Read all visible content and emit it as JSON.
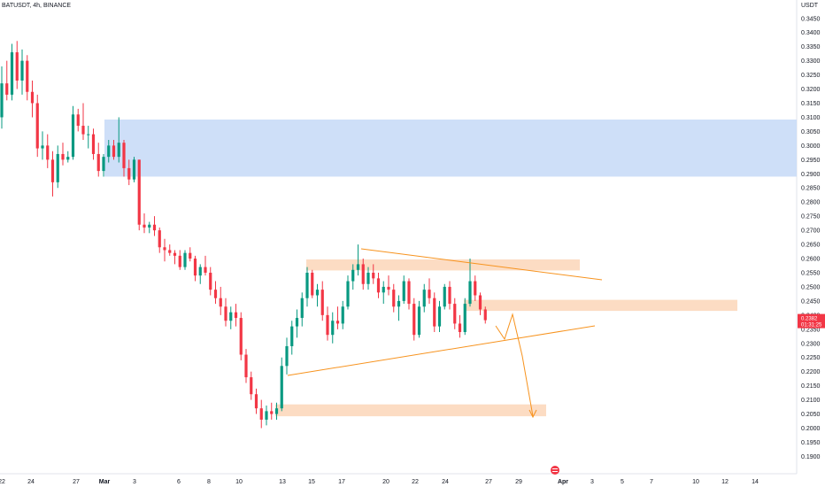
{
  "header": {
    "symbol": "BATUSDT, 4h, BINANCE",
    "currency": "USDT"
  },
  "chart_data": {
    "type": "candlestick",
    "symbol": "BATUSDT",
    "timeframe": "4h",
    "exchange": "BINANCE",
    "y_ticks": [
      "0.3450",
      "0.3400",
      "0.3350",
      "0.3300",
      "0.3250",
      "0.3200",
      "0.3150",
      "0.3100",
      "0.3050",
      "0.3000",
      "0.2950",
      "0.2900",
      "0.2850",
      "0.2800",
      "0.2750",
      "0.2700",
      "0.2650",
      "0.2600",
      "0.2550",
      "0.2500",
      "0.2450",
      "0.2400",
      "0.2350",
      "0.2300",
      "0.2250",
      "0.2200",
      "0.2150",
      "0.2100",
      "0.2050",
      "0.2000",
      "0.1950",
      "0.1900"
    ],
    "ylim": [
      0.187,
      0.349
    ],
    "x_ticks": [
      {
        "label": "22",
        "bold": false
      },
      {
        "label": "24",
        "bold": false
      },
      {
        "label": "27",
        "bold": false
      },
      {
        "label": "Mar",
        "bold": true
      },
      {
        "label": "3",
        "bold": false
      },
      {
        "label": "6",
        "bold": false
      },
      {
        "label": "8",
        "bold": false
      },
      {
        "label": "10",
        "bold": false
      },
      {
        "label": "13",
        "bold": false
      },
      {
        "label": "15",
        "bold": false
      },
      {
        "label": "17",
        "bold": false
      },
      {
        "label": "20",
        "bold": false
      },
      {
        "label": "22",
        "bold": false
      },
      {
        "label": "24",
        "bold": false
      },
      {
        "label": "27",
        "bold": false
      },
      {
        "label": "29",
        "bold": false
      },
      {
        "label": "Apr",
        "bold": true
      },
      {
        "label": "3",
        "bold": false
      },
      {
        "label": "5",
        "bold": false
      },
      {
        "label": "7",
        "bold": false
      },
      {
        "label": "10",
        "bold": false
      },
      {
        "label": "12",
        "bold": false
      },
      {
        "label": "14",
        "bold": false
      }
    ],
    "current_price": {
      "value": "0.2382",
      "countdown": "01:31:25",
      "color": "#f23645"
    },
    "colors": {
      "up": "#089981",
      "down": "#f23645",
      "supply_zone": "#c9dcf7",
      "sr_zone": "#fcd8bc",
      "trendline": "#f7931e"
    },
    "zones": [
      {
        "type": "supply",
        "y_top": 0.3092,
        "y_bottom": 0.289
      },
      {
        "type": "resistance",
        "y_top": 0.2597,
        "y_bottom": 0.2558
      },
      {
        "type": "resistance",
        "y_top": 0.2454,
        "y_bottom": 0.2415
      },
      {
        "type": "support",
        "y_top": 0.2084,
        "y_bottom": 0.2042
      }
    ],
    "candles": [
      [
        0.31,
        0.328,
        0.306,
        0.322
      ],
      [
        0.322,
        0.33,
        0.316,
        0.318
      ],
      [
        0.318,
        0.336,
        0.316,
        0.333
      ],
      [
        0.333,
        0.337,
        0.32,
        0.323
      ],
      [
        0.323,
        0.334,
        0.318,
        0.33
      ],
      [
        0.33,
        0.332,
        0.316,
        0.319
      ],
      [
        0.319,
        0.323,
        0.31,
        0.315
      ],
      [
        0.315,
        0.318,
        0.296,
        0.299
      ],
      [
        0.299,
        0.305,
        0.295,
        0.3
      ],
      [
        0.3,
        0.304,
        0.292,
        0.295
      ],
      [
        0.295,
        0.298,
        0.282,
        0.287
      ],
      [
        0.287,
        0.3,
        0.285,
        0.297
      ],
      [
        0.297,
        0.301,
        0.293,
        0.295
      ],
      [
        0.295,
        0.298,
        0.294,
        0.296
      ],
      [
        0.296,
        0.314,
        0.295,
        0.311
      ],
      [
        0.311,
        0.313,
        0.305,
        0.307
      ],
      [
        0.307,
        0.315,
        0.302,
        0.304
      ],
      [
        0.304,
        0.307,
        0.299,
        0.304
      ],
      [
        0.304,
        0.306,
        0.295,
        0.297
      ],
      [
        0.297,
        0.301,
        0.289,
        0.291
      ],
      [
        0.291,
        0.297,
        0.289,
        0.296
      ],
      [
        0.296,
        0.302,
        0.294,
        0.3
      ],
      [
        0.3,
        0.302,
        0.295,
        0.296
      ],
      [
        0.296,
        0.31,
        0.294,
        0.301
      ],
      [
        0.301,
        0.302,
        0.289,
        0.292
      ],
      [
        0.292,
        0.295,
        0.286,
        0.288
      ],
      [
        0.288,
        0.296,
        0.287,
        0.295
      ],
      [
        0.295,
        0.295,
        0.27,
        0.272
      ],
      [
        0.272,
        0.276,
        0.269,
        0.271
      ],
      [
        0.271,
        0.273,
        0.269,
        0.272
      ],
      [
        0.272,
        0.275,
        0.268,
        0.27
      ],
      [
        0.27,
        0.271,
        0.262,
        0.264
      ],
      [
        0.264,
        0.267,
        0.259,
        0.263
      ],
      [
        0.263,
        0.265,
        0.261,
        0.262
      ],
      [
        0.262,
        0.263,
        0.258,
        0.261
      ],
      [
        0.261,
        0.263,
        0.256,
        0.257
      ],
      [
        0.257,
        0.263,
        0.256,
        0.262
      ],
      [
        0.262,
        0.264,
        0.259,
        0.26
      ],
      [
        0.26,
        0.261,
        0.252,
        0.254
      ],
      [
        0.254,
        0.258,
        0.251,
        0.257
      ],
      [
        0.257,
        0.261,
        0.254,
        0.255
      ],
      [
        0.255,
        0.257,
        0.247,
        0.249
      ],
      [
        0.249,
        0.252,
        0.244,
        0.246
      ],
      [
        0.246,
        0.25,
        0.24,
        0.243
      ],
      [
        0.243,
        0.246,
        0.236,
        0.238
      ],
      [
        0.238,
        0.243,
        0.235,
        0.241
      ],
      [
        0.241,
        0.244,
        0.236,
        0.239
      ],
      [
        0.239,
        0.241,
        0.224,
        0.226
      ],
      [
        0.226,
        0.228,
        0.216,
        0.218
      ],
      [
        0.218,
        0.22,
        0.21,
        0.212
      ],
      [
        0.212,
        0.214,
        0.205,
        0.207
      ],
      [
        0.207,
        0.21,
        0.2,
        0.203
      ],
      [
        0.203,
        0.208,
        0.201,
        0.206
      ],
      [
        0.206,
        0.209,
        0.203,
        0.205
      ],
      [
        0.205,
        0.209,
        0.203,
        0.207
      ],
      [
        0.207,
        0.225,
        0.206,
        0.222
      ],
      [
        0.222,
        0.232,
        0.219,
        0.229
      ],
      [
        0.229,
        0.238,
        0.226,
        0.236
      ],
      [
        0.236,
        0.242,
        0.232,
        0.239
      ],
      [
        0.239,
        0.248,
        0.236,
        0.246
      ],
      [
        0.246,
        0.257,
        0.243,
        0.255
      ],
      [
        0.255,
        0.256,
        0.246,
        0.247
      ],
      [
        0.247,
        0.251,
        0.243,
        0.249
      ],
      [
        0.249,
        0.252,
        0.238,
        0.24
      ],
      [
        0.24,
        0.243,
        0.231,
        0.233
      ],
      [
        0.233,
        0.241,
        0.23,
        0.238
      ],
      [
        0.238,
        0.243,
        0.235,
        0.237
      ],
      [
        0.237,
        0.245,
        0.235,
        0.243
      ],
      [
        0.243,
        0.254,
        0.242,
        0.252
      ],
      [
        0.252,
        0.258,
        0.249,
        0.256
      ],
      [
        0.256,
        0.265,
        0.254,
        0.258
      ],
      [
        0.258,
        0.26,
        0.249,
        0.251
      ],
      [
        0.251,
        0.257,
        0.249,
        0.255
      ],
      [
        0.255,
        0.258,
        0.251,
        0.253
      ],
      [
        0.253,
        0.255,
        0.246,
        0.248
      ],
      [
        0.248,
        0.252,
        0.244,
        0.25
      ],
      [
        0.25,
        0.254,
        0.247,
        0.249
      ],
      [
        0.249,
        0.251,
        0.241,
        0.243
      ],
      [
        0.243,
        0.247,
        0.238,
        0.245
      ],
      [
        0.245,
        0.254,
        0.244,
        0.252
      ],
      [
        0.252,
        0.253,
        0.242,
        0.244
      ],
      [
        0.244,
        0.246,
        0.231,
        0.233
      ],
      [
        0.233,
        0.245,
        0.232,
        0.243
      ],
      [
        0.243,
        0.251,
        0.241,
        0.249
      ],
      [
        0.249,
        0.253,
        0.244,
        0.246
      ],
      [
        0.246,
        0.248,
        0.234,
        0.236
      ],
      [
        0.236,
        0.245,
        0.234,
        0.243
      ],
      [
        0.243,
        0.251,
        0.242,
        0.25
      ],
      [
        0.25,
        0.252,
        0.242,
        0.244
      ],
      [
        0.244,
        0.246,
        0.235,
        0.237
      ],
      [
        0.237,
        0.24,
        0.232,
        0.234
      ],
      [
        0.234,
        0.246,
        0.233,
        0.244
      ],
      [
        0.244,
        0.26,
        0.243,
        0.252
      ],
      [
        0.252,
        0.254,
        0.245,
        0.247
      ],
      [
        0.247,
        0.248,
        0.24,
        0.242
      ],
      [
        0.242,
        0.243,
        0.237,
        0.2382
      ]
    ]
  }
}
